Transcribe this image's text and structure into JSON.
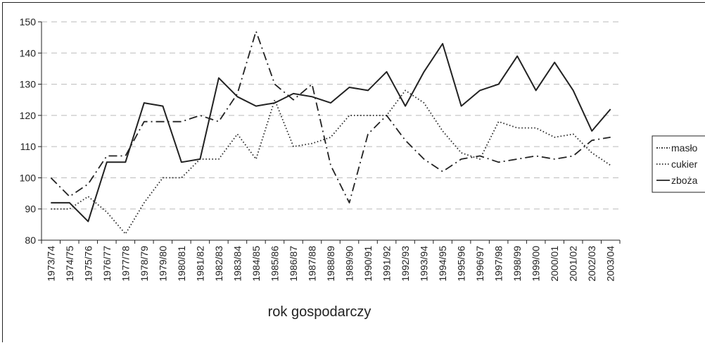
{
  "chart_data": {
    "type": "line",
    "title": "",
    "xlabel": "rok gospodarczy",
    "ylabel": "",
    "ylim": [
      80,
      150
    ],
    "yticks": [
      80,
      90,
      100,
      110,
      120,
      130,
      140,
      150
    ],
    "grid": "horizontal dashed",
    "legend_position": "right",
    "categories": [
      "1973/74",
      "1974/75",
      "1975/76",
      "1976/77",
      "1977/78",
      "1978/79",
      "1979/80",
      "1980/81",
      "1981/82",
      "1982/83",
      "1983/84",
      "1984/85",
      "1985/86",
      "1986/87",
      "1987/88",
      "1988/89",
      "1989/90",
      "1990/91",
      "1991/92",
      "1992/93",
      "1993/94",
      "1994/95",
      "1995/96",
      "1996/97",
      "1997/98",
      "1998/99",
      "1999/00",
      "2000/01",
      "2001/02",
      "2002/03",
      "2003/04"
    ],
    "series": [
      {
        "name": "masło",
        "style": "dash-dot",
        "color": "#222222",
        "values": [
          100,
          94,
          98,
          107,
          107,
          118,
          118,
          118,
          120,
          118,
          127,
          147,
          130,
          125,
          130,
          104,
          92,
          114,
          120,
          112,
          106,
          102,
          106,
          107,
          105,
          106,
          107,
          106,
          107,
          112,
          113
        ]
      },
      {
        "name": "cukier",
        "style": "dotted",
        "color": "#222222",
        "values": [
          90,
          90,
          94,
          89,
          82,
          92,
          100,
          100,
          106,
          106,
          114,
          106,
          125,
          110,
          111,
          113,
          120,
          120,
          120,
          128,
          124,
          115,
          108,
          106,
          118,
          116,
          116,
          113,
          114,
          108,
          104
        ]
      },
      {
        "name": "zboża",
        "style": "solid",
        "color": "#222222",
        "values": [
          92,
          92,
          86,
          105,
          105,
          124,
          123,
          105,
          106,
          132,
          126,
          123,
          124,
          127,
          126,
          124,
          129,
          128,
          134,
          123,
          134,
          143,
          123,
          128,
          130,
          139,
          128,
          137,
          128,
          115,
          122
        ]
      }
    ]
  }
}
